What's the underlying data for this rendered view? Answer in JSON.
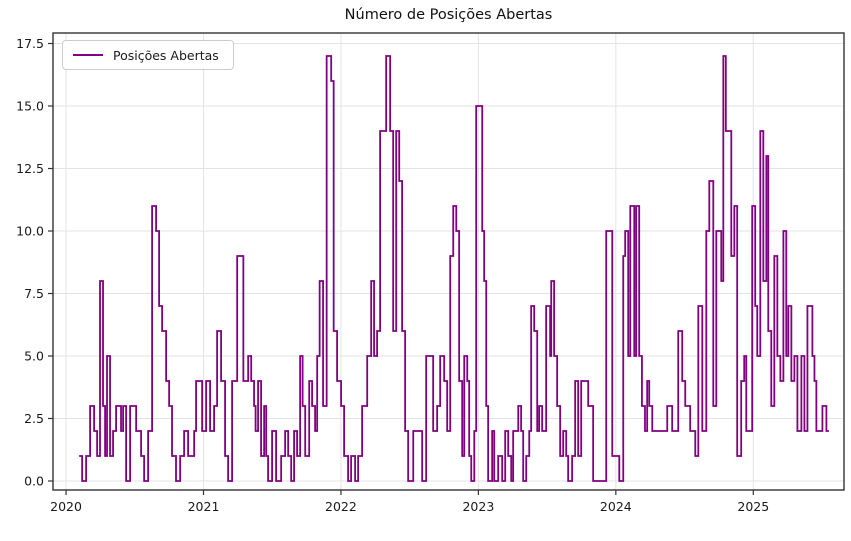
{
  "figure": {
    "background": "#ffffff"
  },
  "chart_data": {
    "type": "line",
    "title": "Número de Posições Abertas",
    "xlabel": "",
    "ylabel": "",
    "grid": true,
    "grid_color": "#e3e3e3",
    "axes_edge_color": "#333333",
    "tick_label_color": "#1a1a1a",
    "x_tick_values": [
      2020,
      2021,
      2022,
      2023,
      2024,
      2025
    ],
    "x_tick_labels": [
      "2020",
      "2021",
      "2022",
      "2023",
      "2024",
      "2025"
    ],
    "y_tick_values": [
      0,
      2.5,
      5,
      7.5,
      10,
      12.5,
      15,
      17.5
    ],
    "y_tick_labels": [
      "0.0",
      "2.5",
      "5.0",
      "7.5",
      "10.0",
      "12.5",
      "15.0",
      "17.5"
    ],
    "xlim": [
      2019.905,
      2025.66
    ],
    "ylim": [
      -0.36,
      17.92
    ],
    "legend": {
      "position": "upper-left",
      "entries": [
        {
          "label": "Posições Abertas",
          "color": "#800080"
        }
      ]
    },
    "series": [
      {
        "name": "Posições Abertas",
        "color": "#800080",
        "line_width": 1.8,
        "style": "steps-post",
        "x_end": 2025.55,
        "points": [
          [
            2020.095,
            1
          ],
          [
            2020.117,
            0
          ],
          [
            2020.146,
            1
          ],
          [
            2020.175,
            3
          ],
          [
            2020.204,
            2
          ],
          [
            2020.226,
            1
          ],
          [
            2020.247,
            8
          ],
          [
            2020.269,
            3
          ],
          [
            2020.284,
            1
          ],
          [
            2020.298,
            5
          ],
          [
            2020.32,
            1
          ],
          [
            2020.342,
            2
          ],
          [
            2020.364,
            3
          ],
          [
            2020.4,
            2
          ],
          [
            2020.415,
            3
          ],
          [
            2020.437,
            0
          ],
          [
            2020.466,
            3
          ],
          [
            2020.51,
            2
          ],
          [
            2020.546,
            1
          ],
          [
            2020.568,
            0
          ],
          [
            2020.597,
            2
          ],
          [
            2020.626,
            11
          ],
          [
            2020.655,
            10
          ],
          [
            2020.677,
            7
          ],
          [
            2020.699,
            6
          ],
          [
            2020.728,
            4
          ],
          [
            2020.75,
            3
          ],
          [
            2020.771,
            1
          ],
          [
            2020.8,
            0
          ],
          [
            2020.83,
            1
          ],
          [
            2020.859,
            2
          ],
          [
            2020.888,
            1
          ],
          [
            2020.932,
            2
          ],
          [
            2020.946,
            4
          ],
          [
            2020.99,
            2
          ],
          [
            2021.019,
            4
          ],
          [
            2021.048,
            2
          ],
          [
            2021.077,
            3
          ],
          [
            2021.099,
            6
          ],
          [
            2021.128,
            4
          ],
          [
            2021.157,
            1
          ],
          [
            2021.179,
            0
          ],
          [
            2021.208,
            4
          ],
          [
            2021.245,
            9
          ],
          [
            2021.29,
            4
          ],
          [
            2021.325,
            5
          ],
          [
            2021.347,
            4
          ],
          [
            2021.368,
            3
          ],
          [
            2021.379,
            2
          ],
          [
            2021.397,
            4
          ],
          [
            2021.419,
            1
          ],
          [
            2021.441,
            3
          ],
          [
            2021.456,
            1
          ],
          [
            2021.47,
            0
          ],
          [
            2021.499,
            2
          ],
          [
            2021.528,
            0
          ],
          [
            2021.565,
            1
          ],
          [
            2021.594,
            2
          ],
          [
            2021.616,
            1
          ],
          [
            2021.638,
            0
          ],
          [
            2021.659,
            2
          ],
          [
            2021.681,
            1
          ],
          [
            2021.703,
            5
          ],
          [
            2021.721,
            3
          ],
          [
            2021.74,
            1
          ],
          [
            2021.769,
            4
          ],
          [
            2021.79,
            3
          ],
          [
            2021.812,
            2
          ],
          [
            2021.827,
            5
          ],
          [
            2021.845,
            8
          ],
          [
            2021.87,
            3
          ],
          [
            2021.896,
            17
          ],
          [
            2021.929,
            16
          ],
          [
            2021.947,
            6
          ],
          [
            2021.972,
            4
          ],
          [
            2022.001,
            3
          ],
          [
            2022.023,
            1
          ],
          [
            2022.052,
            0
          ],
          [
            2022.074,
            1
          ],
          [
            2022.103,
            0
          ],
          [
            2022.125,
            1
          ],
          [
            2022.154,
            3
          ],
          [
            2022.191,
            5
          ],
          [
            2022.22,
            8
          ],
          [
            2022.241,
            5
          ],
          [
            2022.263,
            6
          ],
          [
            2022.285,
            14
          ],
          [
            2022.329,
            17
          ],
          [
            2022.358,
            14
          ],
          [
            2022.38,
            6
          ],
          [
            2022.402,
            14
          ],
          [
            2022.424,
            12
          ],
          [
            2022.445,
            6
          ],
          [
            2022.467,
            2
          ],
          [
            2022.489,
            0
          ],
          [
            2022.526,
            2
          ],
          [
            2022.591,
            0
          ],
          [
            2022.62,
            5
          ],
          [
            2022.671,
            2
          ],
          [
            2022.7,
            3
          ],
          [
            2022.722,
            5
          ],
          [
            2022.751,
            4
          ],
          [
            2022.773,
            2
          ],
          [
            2022.795,
            9
          ],
          [
            2022.817,
            11
          ],
          [
            2022.839,
            10
          ],
          [
            2022.86,
            4
          ],
          [
            2022.882,
            1
          ],
          [
            2022.897,
            5
          ],
          [
            2022.919,
            4
          ],
          [
            2022.933,
            1
          ],
          [
            2022.948,
            0
          ],
          [
            2022.97,
            2
          ],
          [
            2022.984,
            15
          ],
          [
            2023.028,
            10
          ],
          [
            2023.042,
            8
          ],
          [
            2023.057,
            3
          ],
          [
            2023.071,
            0
          ],
          [
            2023.1,
            2
          ],
          [
            2023.115,
            0
          ],
          [
            2023.144,
            1
          ],
          [
            2023.173,
            0
          ],
          [
            2023.195,
            2
          ],
          [
            2023.217,
            1
          ],
          [
            2023.239,
            0
          ],
          [
            2023.253,
            2
          ],
          [
            2023.29,
            3
          ],
          [
            2023.311,
            2
          ],
          [
            2023.326,
            0
          ],
          [
            2023.348,
            1
          ],
          [
            2023.37,
            2
          ],
          [
            2023.384,
            7
          ],
          [
            2023.406,
            6
          ],
          [
            2023.428,
            2
          ],
          [
            2023.442,
            3
          ],
          [
            2023.464,
            2
          ],
          [
            2023.493,
            7
          ],
          [
            2023.522,
            5
          ],
          [
            2023.53,
            8
          ],
          [
            2023.551,
            5
          ],
          [
            2023.573,
            3
          ],
          [
            2023.595,
            1
          ],
          [
            2023.617,
            2
          ],
          [
            2023.639,
            1
          ],
          [
            2023.653,
            0
          ],
          [
            2023.682,
            1
          ],
          [
            2023.704,
            4
          ],
          [
            2023.726,
            1
          ],
          [
            2023.748,
            4
          ],
          [
            2023.799,
            3
          ],
          [
            2023.835,
            0
          ],
          [
            2023.93,
            10
          ],
          [
            2023.974,
            1
          ],
          [
            2024.025,
            0
          ],
          [
            2024.054,
            9
          ],
          [
            2024.068,
            10
          ],
          [
            2024.09,
            5
          ],
          [
            2024.105,
            11
          ],
          [
            2024.134,
            5
          ],
          [
            2024.148,
            11
          ],
          [
            2024.17,
            5
          ],
          [
            2024.19,
            3
          ],
          [
            2024.212,
            2
          ],
          [
            2024.228,
            4
          ],
          [
            2024.243,
            3
          ],
          [
            2024.265,
            2
          ],
          [
            2024.374,
            3
          ],
          [
            2024.41,
            2
          ],
          [
            2024.454,
            6
          ],
          [
            2024.483,
            4
          ],
          [
            2024.505,
            3
          ],
          [
            2024.541,
            2
          ],
          [
            2024.578,
            1
          ],
          [
            2024.6,
            7
          ],
          [
            2024.629,
            2
          ],
          [
            2024.658,
            10
          ],
          [
            2024.68,
            12
          ],
          [
            2024.709,
            3
          ],
          [
            2024.731,
            10
          ],
          [
            2024.767,
            8
          ],
          [
            2024.782,
            17
          ],
          [
            2024.8,
            14
          ],
          [
            2024.84,
            9
          ],
          [
            2024.862,
            11
          ],
          [
            2024.883,
            1
          ],
          [
            2024.912,
            4
          ],
          [
            2024.934,
            5
          ],
          [
            2024.949,
            2
          ],
          [
            2024.992,
            11
          ],
          [
            2025.014,
            7
          ],
          [
            2025.029,
            5
          ],
          [
            2025.051,
            14
          ],
          [
            2025.073,
            8
          ],
          [
            2025.095,
            13
          ],
          [
            2025.109,
            6
          ],
          [
            2025.131,
            3
          ],
          [
            2025.153,
            9
          ],
          [
            2025.175,
            5
          ],
          [
            2025.197,
            4
          ],
          [
            2025.219,
            10
          ],
          [
            2025.24,
            5
          ],
          [
            2025.255,
            7
          ],
          [
            2025.277,
            4
          ],
          [
            2025.299,
            5
          ],
          [
            2025.321,
            2
          ],
          [
            2025.35,
            5
          ],
          [
            2025.372,
            2
          ],
          [
            2025.394,
            7
          ],
          [
            2025.43,
            5
          ],
          [
            2025.445,
            4
          ],
          [
            2025.459,
            2
          ],
          [
            2025.503,
            3
          ],
          [
            2025.532,
            2
          ]
        ]
      }
    ]
  }
}
